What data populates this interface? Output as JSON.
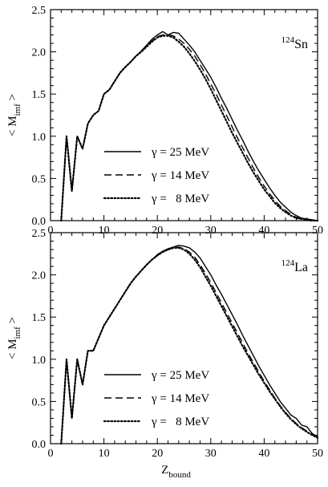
{
  "chart_data": [
    {
      "type": "line",
      "label": "Sn",
      "label_superscript": "124",
      "label_placement": "top-right",
      "xlim": [
        0,
        50
      ],
      "ylim": [
        0,
        2.5
      ],
      "x_ticks": [
        "0",
        "10",
        "20",
        "30",
        "40",
        "50"
      ],
      "y_ticks": [
        "0.0",
        "0.5",
        "1.0",
        "1.5",
        "2.0",
        "2.5"
      ],
      "ylabel_main": "< M",
      "ylabel_sub": "imf",
      "ylabel_close": " >",
      "legend_placement": "bottom-left",
      "series": [
        {
          "name": "γ = 25 MeV",
          "style": "solid",
          "x": [
            2,
            3,
            4,
            5,
            6,
            7,
            8,
            9,
            10,
            11,
            12,
            13,
            14,
            15,
            16,
            17,
            18,
            19,
            20,
            21,
            22,
            23,
            24,
            25,
            26,
            27,
            28,
            29,
            30,
            31,
            32,
            33,
            34,
            35,
            36,
            37,
            38,
            39,
            40,
            41,
            42,
            43,
            44,
            45,
            46,
            47,
            48,
            49,
            50
          ],
          "y": [
            0.0,
            1.0,
            0.35,
            1.0,
            0.85,
            1.15,
            1.25,
            1.3,
            1.5,
            1.55,
            1.65,
            1.75,
            1.82,
            1.88,
            1.95,
            2.01,
            2.08,
            2.15,
            2.2,
            2.24,
            2.2,
            2.23,
            2.22,
            2.15,
            2.08,
            2.0,
            1.9,
            1.8,
            1.7,
            1.58,
            1.45,
            1.33,
            1.2,
            1.07,
            0.95,
            0.82,
            0.7,
            0.59,
            0.49,
            0.39,
            0.3,
            0.22,
            0.16,
            0.1,
            0.06,
            0.03,
            0.02,
            0.01,
            0.0
          ]
        },
        {
          "name": "γ = 14 MeV",
          "style": "dashed",
          "x": [
            2,
            3,
            4,
            5,
            6,
            7,
            8,
            9,
            10,
            11,
            12,
            13,
            14,
            15,
            16,
            17,
            18,
            19,
            20,
            21,
            22,
            23,
            24,
            25,
            26,
            27,
            28,
            29,
            30,
            31,
            32,
            33,
            34,
            35,
            36,
            37,
            38,
            39,
            40,
            41,
            42,
            43,
            44,
            45,
            46,
            47,
            48,
            49,
            50
          ],
          "y": [
            0.0,
            1.0,
            0.35,
            1.0,
            0.85,
            1.15,
            1.25,
            1.3,
            1.5,
            1.55,
            1.65,
            1.75,
            1.82,
            1.88,
            1.95,
            2.01,
            2.07,
            2.13,
            2.18,
            2.2,
            2.2,
            2.19,
            2.15,
            2.1,
            2.03,
            1.95,
            1.85,
            1.74,
            1.62,
            1.5,
            1.37,
            1.24,
            1.11,
            0.98,
            0.86,
            0.74,
            0.62,
            0.51,
            0.41,
            0.32,
            0.24,
            0.17,
            0.12,
            0.07,
            0.04,
            0.02,
            0.01,
            0.0,
            0.0
          ]
        },
        {
          "name": "γ =   8 MeV",
          "style": "dotted",
          "x": [
            2,
            3,
            4,
            5,
            6,
            7,
            8,
            9,
            10,
            11,
            12,
            13,
            14,
            15,
            16,
            17,
            18,
            19,
            20,
            21,
            22,
            23,
            24,
            25,
            26,
            27,
            28,
            29,
            30,
            31,
            32,
            33,
            34,
            35,
            36,
            37,
            38,
            39,
            40,
            41,
            42,
            43,
            44,
            45,
            46,
            47,
            48,
            49,
            50
          ],
          "y": [
            0.0,
            1.0,
            0.35,
            1.0,
            0.85,
            1.15,
            1.25,
            1.3,
            1.5,
            1.55,
            1.65,
            1.75,
            1.82,
            1.88,
            1.95,
            2.0,
            2.06,
            2.12,
            2.17,
            2.19,
            2.19,
            2.17,
            2.12,
            2.06,
            1.98,
            1.89,
            1.79,
            1.68,
            1.56,
            1.43,
            1.3,
            1.17,
            1.04,
            0.92,
            0.8,
            0.68,
            0.57,
            0.47,
            0.37,
            0.29,
            0.21,
            0.15,
            0.1,
            0.06,
            0.03,
            0.02,
            0.01,
            0.0,
            0.0
          ]
        }
      ]
    },
    {
      "type": "line",
      "label": "La",
      "label_superscript": "124",
      "label_placement": "top-right",
      "xlim": [
        0,
        50
      ],
      "ylim": [
        0,
        2.5
      ],
      "x_ticks": [
        "0",
        "10",
        "20",
        "30",
        "40",
        "50"
      ],
      "y_ticks": [
        "0.0",
        "0.5",
        "1.0",
        "1.5",
        "2.0",
        "2.5"
      ],
      "ylabel_main": "< M",
      "ylabel_sub": "imf",
      "ylabel_close": " >",
      "xlabel_main": "Z",
      "xlabel_sub": "bound",
      "legend_placement": "bottom-left",
      "series": [
        {
          "name": "γ = 25 MeV",
          "style": "solid",
          "x": [
            2,
            3,
            4,
            5,
            6,
            7,
            8,
            9,
            10,
            11,
            12,
            13,
            14,
            15,
            16,
            17,
            18,
            19,
            20,
            21,
            22,
            23,
            24,
            25,
            26,
            27,
            28,
            29,
            30,
            31,
            32,
            33,
            34,
            35,
            36,
            37,
            38,
            39,
            40,
            41,
            42,
            43,
            44,
            45,
            46,
            47,
            48,
            49,
            50
          ],
          "y": [
            0.0,
            1.0,
            0.3,
            1.0,
            0.7,
            1.1,
            1.1,
            1.25,
            1.4,
            1.5,
            1.6,
            1.7,
            1.8,
            1.9,
            1.98,
            2.05,
            2.12,
            2.18,
            2.24,
            2.28,
            2.31,
            2.33,
            2.35,
            2.34,
            2.32,
            2.27,
            2.2,
            2.1,
            2.0,
            1.88,
            1.77,
            1.65,
            1.53,
            1.41,
            1.28,
            1.16,
            1.04,
            0.92,
            0.81,
            0.7,
            0.6,
            0.5,
            0.42,
            0.34,
            0.3,
            0.22,
            0.2,
            0.12,
            0.08
          ]
        },
        {
          "name": "γ = 14 MeV",
          "style": "dashed",
          "x": [
            2,
            3,
            4,
            5,
            6,
            7,
            8,
            9,
            10,
            11,
            12,
            13,
            14,
            15,
            16,
            17,
            18,
            19,
            20,
            21,
            22,
            23,
            24,
            25,
            26,
            27,
            28,
            29,
            30,
            31,
            32,
            33,
            34,
            35,
            36,
            37,
            38,
            39,
            40,
            41,
            42,
            43,
            44,
            45,
            46,
            47,
            48,
            49,
            50
          ],
          "y": [
            0.0,
            1.0,
            0.3,
            1.0,
            0.7,
            1.1,
            1.1,
            1.25,
            1.4,
            1.5,
            1.6,
            1.7,
            1.8,
            1.9,
            1.98,
            2.05,
            2.12,
            2.18,
            2.23,
            2.27,
            2.3,
            2.32,
            2.33,
            2.31,
            2.27,
            2.21,
            2.12,
            2.02,
            1.91,
            1.79,
            1.67,
            1.55,
            1.43,
            1.31,
            1.19,
            1.07,
            0.96,
            0.85,
            0.74,
            0.64,
            0.54,
            0.45,
            0.37,
            0.3,
            0.24,
            0.19,
            0.15,
            0.11,
            0.08
          ]
        },
        {
          "name": "γ =   8 MeV",
          "style": "dotted",
          "x": [
            2,
            3,
            4,
            5,
            6,
            7,
            8,
            9,
            10,
            11,
            12,
            13,
            14,
            15,
            16,
            17,
            18,
            19,
            20,
            21,
            22,
            23,
            24,
            25,
            26,
            27,
            28,
            29,
            30,
            31,
            32,
            33,
            34,
            35,
            36,
            37,
            38,
            39,
            40,
            41,
            42,
            43,
            44,
            45,
            46,
            47,
            48,
            49,
            50
          ],
          "y": [
            0.0,
            1.0,
            0.3,
            1.0,
            0.7,
            1.1,
            1.1,
            1.25,
            1.4,
            1.5,
            1.6,
            1.7,
            1.8,
            1.9,
            1.98,
            2.05,
            2.12,
            2.18,
            2.23,
            2.27,
            2.3,
            2.32,
            2.32,
            2.3,
            2.25,
            2.18,
            2.09,
            1.98,
            1.87,
            1.75,
            1.63,
            1.51,
            1.39,
            1.27,
            1.15,
            1.04,
            0.93,
            0.82,
            0.72,
            0.62,
            0.53,
            0.44,
            0.36,
            0.29,
            0.23,
            0.18,
            0.14,
            0.1,
            0.07
          ]
        }
      ]
    }
  ]
}
